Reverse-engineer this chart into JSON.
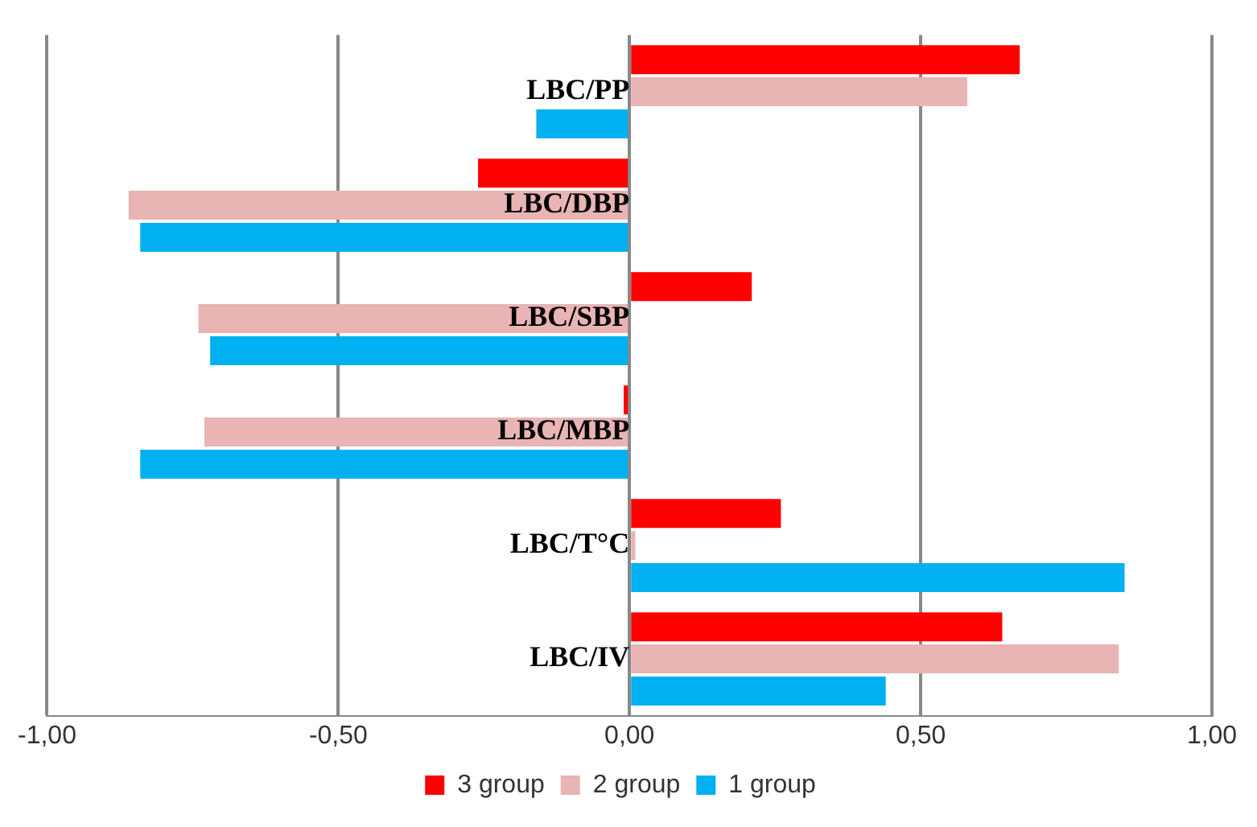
{
  "chart_data": {
    "type": "bar",
    "orientation": "horizontal",
    "categories": [
      "LBC/PP",
      "LBC/DBP",
      "LBC/SBP",
      "LBC/MBP",
      "LBC/T°C",
      "LBC/IV"
    ],
    "series": [
      {
        "name": "3 group",
        "color": "#ff0000",
        "values": [
          0.67,
          -0.26,
          0.21,
          -0.01,
          0.26,
          0.64
        ]
      },
      {
        "name": "2 group",
        "color": "#e8b4b4",
        "values": [
          0.58,
          -0.86,
          -0.74,
          -0.73,
          0.01,
          0.84
        ]
      },
      {
        "name": "1 group",
        "color": "#00b0f0",
        "values": [
          -0.16,
          -0.84,
          -0.72,
          -0.84,
          0.85,
          0.44
        ]
      }
    ],
    "xlim": [
      -1,
      1
    ],
    "xticks": [
      {
        "value": -1,
        "label": "-1,00"
      },
      {
        "value": -0.5,
        "label": "-0,50"
      },
      {
        "value": 0,
        "label": "0,00"
      },
      {
        "value": 0.5,
        "label": "0,50"
      },
      {
        "value": 1,
        "label": "1,00"
      }
    ],
    "grid": "x",
    "legend": "bottom"
  }
}
